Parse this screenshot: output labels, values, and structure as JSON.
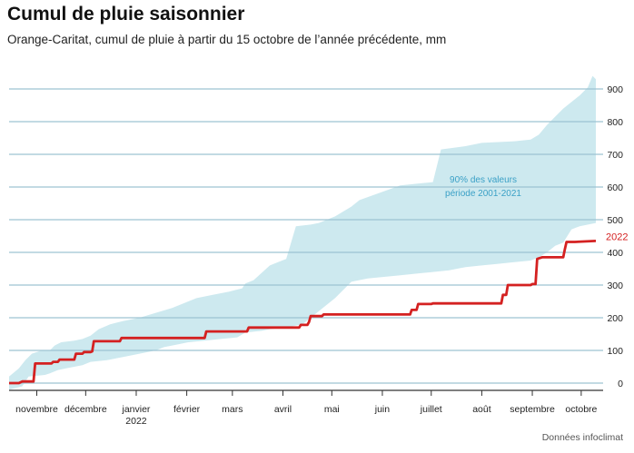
{
  "chart_data": {
    "type": "area",
    "title": "Cumul de pluie saisonnier",
    "subtitle": "Orange-Caritat, cumul de pluie à partir du 15 octobre de l’année précédente, mm",
    "source": "Données infoclimat",
    "ylim": [
      0,
      900
    ],
    "yticks": [
      0,
      100,
      200,
      300,
      400,
      500,
      600,
      700,
      800,
      900
    ],
    "grid": true,
    "x_unit": "day of season (0 = 15 octobre)",
    "xlim": [
      0,
      365
    ],
    "month_ticks": [
      {
        "label": "novembre",
        "day": 17
      },
      {
        "label": "décembre",
        "day": 47
      },
      {
        "label": "janvier",
        "label2": "2022",
        "day": 78
      },
      {
        "label": "février",
        "day": 109
      },
      {
        "label": "mars",
        "day": 137
      },
      {
        "label": "avril",
        "day": 168
      },
      {
        "label": "mai",
        "day": 198
      },
      {
        "label": "juin",
        "day": 229
      },
      {
        "label": "juillet",
        "day": 259
      },
      {
        "label": "août",
        "day": 290
      },
      {
        "label": "septembre",
        "day": 321
      },
      {
        "label": "octobre",
        "day": 351
      }
    ],
    "series": [
      {
        "name": "2022",
        "color": "#d42121",
        "points": [
          [
            0,
            0
          ],
          [
            6,
            0
          ],
          [
            8,
            5
          ],
          [
            15,
            5
          ],
          [
            16,
            60
          ],
          [
            26,
            60
          ],
          [
            27,
            65
          ],
          [
            30,
            65
          ],
          [
            31,
            72
          ],
          [
            40,
            72
          ],
          [
            41,
            90
          ],
          [
            45,
            90
          ],
          [
            46,
            95
          ],
          [
            50,
            95
          ],
          [
            51,
            97
          ],
          [
            52,
            128
          ],
          [
            68,
            128
          ],
          [
            69,
            138
          ],
          [
            120,
            138
          ],
          [
            121,
            158
          ],
          [
            146,
            158
          ],
          [
            147,
            170
          ],
          [
            178,
            170
          ],
          [
            179,
            178
          ],
          [
            183,
            178
          ],
          [
            184,
            187
          ],
          [
            185,
            205
          ],
          [
            192,
            205
          ],
          [
            193,
            210
          ],
          [
            246,
            210
          ],
          [
            247,
            224
          ],
          [
            250,
            224
          ],
          [
            251,
            242
          ],
          [
            259,
            242
          ],
          [
            260,
            244
          ],
          [
            302,
            244
          ],
          [
            303,
            270
          ],
          [
            305,
            270
          ],
          [
            306,
            300
          ],
          [
            320,
            300
          ],
          [
            321,
            303
          ],
          [
            323,
            303
          ],
          [
            324,
            380
          ],
          [
            327,
            385
          ],
          [
            340,
            385
          ],
          [
            341,
            410
          ],
          [
            342,
            432
          ],
          [
            347,
            432
          ],
          [
            360,
            435
          ]
        ]
      }
    ],
    "band": {
      "label": "90% des valeurs période 2001-2021",
      "color": "#cde9ef",
      "label_color": "#3aa0c6",
      "upper": [
        [
          0,
          20
        ],
        [
          6,
          45
        ],
        [
          10,
          70
        ],
        [
          14,
          90
        ],
        [
          20,
          100
        ],
        [
          25,
          100
        ],
        [
          28,
          115
        ],
        [
          30,
          120
        ],
        [
          32,
          125
        ],
        [
          40,
          130
        ],
        [
          45,
          135
        ],
        [
          50,
          145
        ],
        [
          55,
          165
        ],
        [
          62,
          180
        ],
        [
          70,
          190
        ],
        [
          80,
          200
        ],
        [
          90,
          215
        ],
        [
          100,
          230
        ],
        [
          110,
          250
        ],
        [
          115,
          260
        ],
        [
          125,
          270
        ],
        [
          135,
          280
        ],
        [
          143,
          290
        ],
        [
          145,
          305
        ],
        [
          150,
          315
        ],
        [
          160,
          360
        ],
        [
          165,
          370
        ],
        [
          170,
          380
        ],
        [
          176,
          480
        ],
        [
          185,
          485
        ],
        [
          190,
          490
        ],
        [
          200,
          510
        ],
        [
          210,
          540
        ],
        [
          215,
          560
        ],
        [
          240,
          605
        ],
        [
          250,
          610
        ],
        [
          260,
          615
        ],
        [
          265,
          715
        ],
        [
          280,
          725
        ],
        [
          290,
          735
        ],
        [
          310,
          740
        ],
        [
          320,
          745
        ],
        [
          325,
          760
        ],
        [
          330,
          790
        ],
        [
          340,
          840
        ],
        [
          345,
          860
        ],
        [
          350,
          880
        ],
        [
          355,
          905
        ],
        [
          358,
          940
        ],
        [
          360,
          930
        ]
      ],
      "lower": [
        [
          0,
          -20
        ],
        [
          8,
          -10
        ],
        [
          12,
          20
        ],
        [
          22,
          25
        ],
        [
          25,
          30
        ],
        [
          30,
          40
        ],
        [
          35,
          45
        ],
        [
          45,
          55
        ],
        [
          50,
          65
        ],
        [
          60,
          70
        ],
        [
          70,
          80
        ],
        [
          80,
          90
        ],
        [
          90,
          100
        ],
        [
          95,
          110
        ],
        [
          100,
          115
        ],
        [
          110,
          125
        ],
        [
          120,
          130
        ],
        [
          130,
          135
        ],
        [
          140,
          140
        ],
        [
          145,
          155
        ],
        [
          155,
          160
        ],
        [
          160,
          165
        ],
        [
          170,
          170
        ],
        [
          180,
          180
        ],
        [
          200,
          260
        ],
        [
          210,
          310
        ],
        [
          220,
          320
        ],
        [
          230,
          325
        ],
        [
          240,
          330
        ],
        [
          250,
          335
        ],
        [
          260,
          340
        ],
        [
          270,
          345
        ],
        [
          280,
          355
        ],
        [
          290,
          360
        ],
        [
          300,
          365
        ],
        [
          310,
          370
        ],
        [
          320,
          375
        ],
        [
          325,
          385
        ],
        [
          330,
          400
        ],
        [
          335,
          420
        ],
        [
          340,
          430
        ],
        [
          345,
          470
        ],
        [
          350,
          480
        ],
        [
          360,
          490
        ]
      ]
    }
  }
}
